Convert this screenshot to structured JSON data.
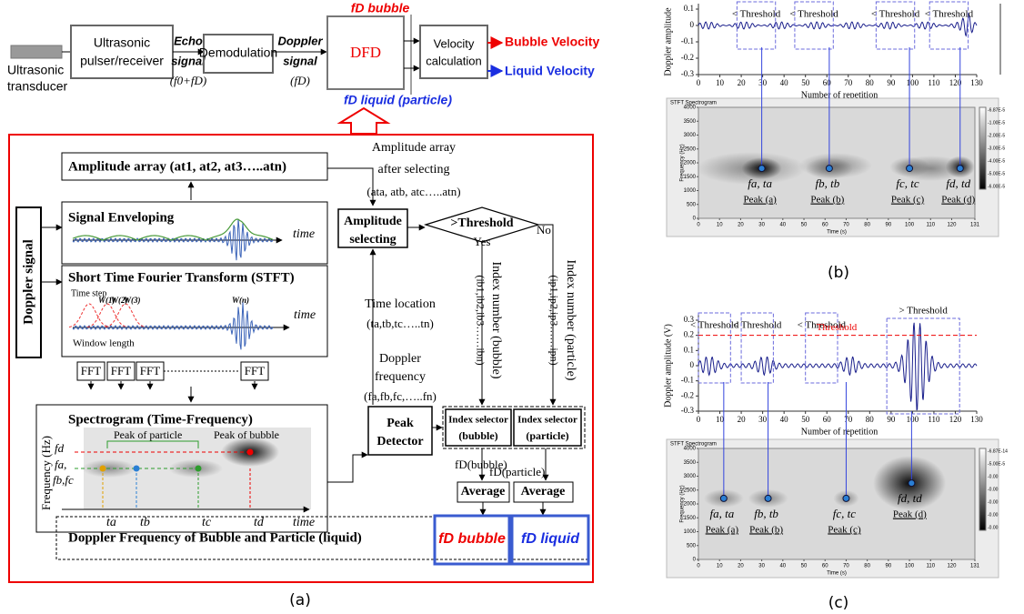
{
  "flow": {
    "transducer": [
      "Ultrasonic",
      "transducer"
    ],
    "pulser": [
      "Ultrasonic",
      "pulser/receiver"
    ],
    "echo": [
      "Echo",
      "signal"
    ],
    "echo_freq": "(f0+fD)",
    "demod": "Demodulation",
    "doppler": [
      "Doppler",
      "signal"
    ],
    "doppler_freq": "(fD)",
    "dfd": "DFD",
    "fd_bubble": "fD bubble",
    "fd_liquid": "fD liquid (particle)",
    "velocity": [
      "Velocity",
      "calculation"
    ],
    "bubble_velocity": "Bubble Velocity",
    "liquid_velocity": "Liquid Velocity"
  },
  "panel_a": {
    "amplitude_array": "Amplitude array (at1, at2, at3…..atn)",
    "doppler_signal": "Doppler signal",
    "enveloping": "Signal Enveloping",
    "time": "time",
    "stft": "Short Time Fourier Transform (STFT)",
    "time_step": "Time step",
    "window": "Window  length",
    "windows": [
      "W(1)",
      "W(2)",
      "W(3)",
      "W(n)"
    ],
    "fft": [
      "FFT",
      "FFT",
      "FFT",
      "FFT"
    ],
    "spectrogram": "Spectrogram (Time-Frequency)",
    "frequency": "Frequency (Hz)",
    "peak_particle": "Peak of particle",
    "peak_bubble": "Peak of bubble",
    "freqs": [
      "fd",
      "fa,",
      "fb,fc"
    ],
    "times": [
      "ta",
      "tb",
      "tc",
      "td"
    ],
    "after_selecting": [
      "Amplitude array",
      "after selecting",
      "(ata, atb, atc…..atn)"
    ],
    "amplitude_selecting": [
      "Amplitude",
      "selecting"
    ],
    "threshold": ">Threshold",
    "yes": "Yes",
    "no": "No",
    "time_location": [
      "Time location",
      "(ta,tb,tc…..tn)"
    ],
    "doppler_frequency": [
      "Doppler",
      "frequency",
      "(fa,fb,fc,…..fn)"
    ],
    "peak_detector": [
      "Peak",
      "Detector"
    ],
    "index_bubble": [
      "Index number (bubble)",
      "(ib1,ib2,ib3……ibn)"
    ],
    "index_particle": [
      "Index number (particle)",
      "(ip1,ip2,ip3……ipn)"
    ],
    "selector_bubble": [
      "Index selector",
      "(bubble)"
    ],
    "selector_particle": [
      "Index selector",
      "(particle)"
    ],
    "fd_outputs": [
      "fD(bubble)",
      "fD(particle)"
    ],
    "average": [
      "Average",
      "Average"
    ],
    "result": "Doppler Frequency of Bubble and Particle (liquid)",
    "fd_bubble": "fD bubble",
    "fd_liquid": "fD liquid",
    "caption": "(a)"
  },
  "panel_b": {
    "ylabel": "Doppler amplitude",
    "ylim": [
      -0.3,
      0.1
    ],
    "yticks": [
      0.1,
      0,
      -0.1,
      -0.2,
      -0.3
    ],
    "xlabel": "Number of repetition",
    "xlim": [
      0,
      130
    ],
    "xticks": [
      0,
      10,
      20,
      30,
      40,
      50,
      60,
      70,
      80,
      90,
      100,
      110,
      120,
      130
    ],
    "threshold_boxes": [
      "< Threshold",
      "< Threshold",
      "< Threshold",
      "< Threshold"
    ],
    "spec_title": "STFT Spectrogram",
    "spec_ylabel": "Frequency (Hz)",
    "spec_xlabel": "Time (s)",
    "spec_ylim": [
      0,
      4000
    ],
    "spec_yticks": [
      0,
      500,
      1000,
      1500,
      2000,
      2500,
      3000,
      3500,
      4000
    ],
    "spec_xlim": [
      0,
      131
    ],
    "spec_xticks": [
      0,
      10,
      20,
      30,
      40,
      50,
      60,
      70,
      80,
      90,
      100,
      110,
      120,
      131
    ],
    "colorbar": [
      "-6.87E-5",
      "-1.00E-5",
      "-2.00E-5",
      "-3.00E-5",
      "-4.00E-5",
      "-5.00E-5",
      "-6.00E-5"
    ],
    "peaks": [
      [
        "fa, ta",
        "Peak (a)"
      ],
      [
        "fb, tb",
        "Peak (b)"
      ],
      [
        "fc, tc",
        "Peak (c)"
      ],
      [
        "fd, td",
        "Peak (d)"
      ]
    ],
    "caption": "(b)"
  },
  "panel_c": {
    "ylabel": "Doppler amplitude (V)",
    "ylim": [
      -0.3,
      0.3
    ],
    "yticks": [
      0.3,
      0.2,
      0.1,
      0,
      -0.1,
      -0.2,
      -0.3
    ],
    "xlabel": "Number of repetition",
    "xlim": [
      0,
      130
    ],
    "xticks": [
      0,
      10,
      20,
      30,
      40,
      50,
      60,
      70,
      80,
      90,
      100,
      110,
      120,
      130
    ],
    "threshold_label": "Threshold",
    "threshold_level": 0.2,
    "above_threshold": "> Threshold",
    "threshold_boxes": [
      "< Threshold",
      "< Threshold",
      "< Threshold"
    ],
    "spec_title": "STFT Spectrogram",
    "spec_ylabel": "Frequency (Hz)",
    "spec_xlabel": "Time (s)",
    "spec_ylim": [
      0,
      4000
    ],
    "spec_yticks": [
      0,
      500,
      1000,
      1500,
      2000,
      2500,
      3000,
      3500,
      4000
    ],
    "spec_xlim": [
      0,
      131
    ],
    "spec_xticks": [
      0,
      10,
      20,
      30,
      40,
      50,
      60,
      70,
      80,
      90,
      100,
      110,
      120,
      131
    ],
    "colorbar": [
      "-6.87E-14",
      "-5.00E-5",
      "-0.00",
      "-0.00",
      "-0.00",
      "-0.00",
      "-0.00"
    ],
    "peaks": [
      [
        "fa, ta",
        "Peak (a)"
      ],
      [
        "fb, tb",
        "Peak (b)"
      ],
      [
        "fc, tc",
        "Peak (c)"
      ],
      [
        "fd, td",
        "Peak (d)"
      ]
    ],
    "caption": "(c)"
  }
}
